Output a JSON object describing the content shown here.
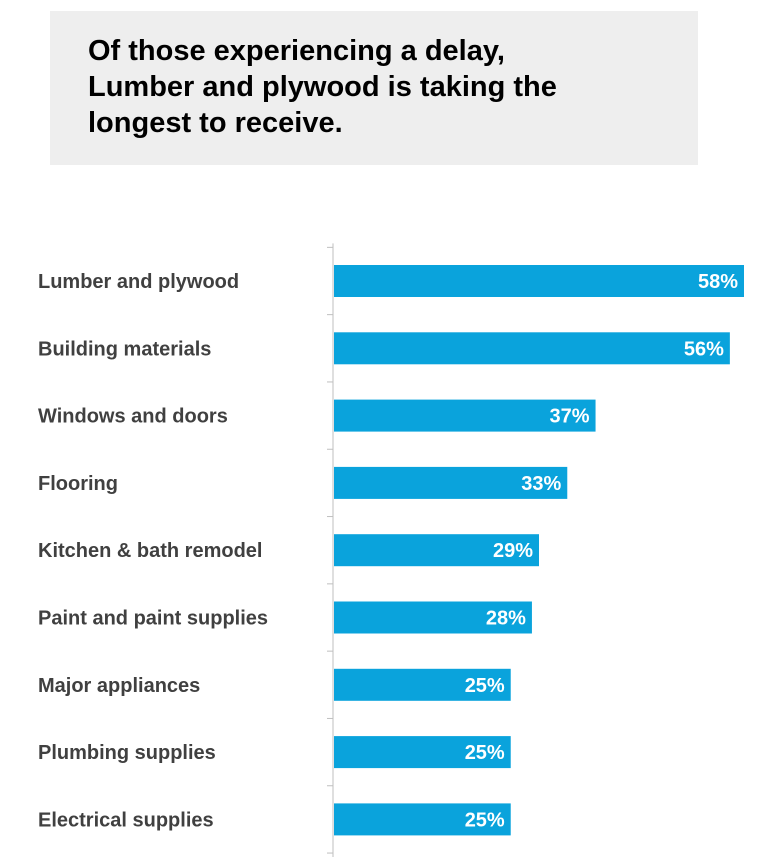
{
  "title": "Of those experiencing a delay,\nLumber and plywood is taking the\nlongest to receive.",
  "colors": {
    "bar": "#0aa3dc",
    "title_background": "#eeeeee",
    "category_text": "#404040",
    "value_text": "#ffffff",
    "axis": "#bfbfbf"
  },
  "chart_data": {
    "type": "bar",
    "orientation": "horizontal",
    "title": "Of those experiencing a delay, Lumber and plywood is taking the longest to receive.",
    "categories": [
      "Lumber and plywood",
      "Building materials",
      "Windows and doors",
      "Flooring",
      "Kitchen & bath remodel",
      "Paint and paint supplies",
      "Major appliances",
      "Plumbing supplies",
      "Electrical supplies"
    ],
    "values": [
      58,
      56,
      37,
      33,
      29,
      28,
      25,
      25,
      25
    ],
    "value_labels": [
      "58%",
      "56%",
      "37%",
      "33%",
      "29%",
      "28%",
      "25%",
      "25%",
      "25%"
    ],
    "xlim": [
      0,
      60
    ],
    "grid": false,
    "legend": "none"
  }
}
